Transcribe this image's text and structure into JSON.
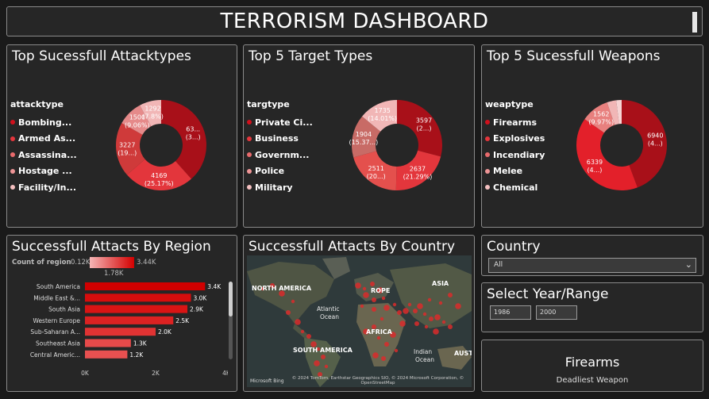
{
  "header": {
    "title": "TERRORISM DASHBOARD"
  },
  "attacktypes": {
    "title": "Top Sucessfull Attacktypes",
    "legend_title": "attacktype",
    "legend": [
      {
        "label": "Bombing...",
        "color": "#d0101c"
      },
      {
        "label": "Armed As...",
        "color": "#e3363c"
      },
      {
        "label": "Assassina...",
        "color": "#e86a6c"
      },
      {
        "label": "Hostage ...",
        "color": "#ee9596"
      },
      {
        "label": "Facility/In...",
        "color": "#f4c0c0"
      }
    ],
    "slices": [
      {
        "value": 6350,
        "l1": "63...",
        "l2": "(3...)",
        "color": "#a81019"
      },
      {
        "value": 4169,
        "l1": "4169",
        "l2": "(25.17%)",
        "color": "#e3363c"
      },
      {
        "value": 3227,
        "l1": "3227",
        "l2": "(19...)",
        "color": "#cf3a3a"
      },
      {
        "value": 1500,
        "l1": "1500",
        "l2": "(9.06%)",
        "color": "#e58a8a"
      },
      {
        "value": 1292,
        "l1": "1292",
        "l2": "(7.8%)",
        "color": "#f1b6b6"
      }
    ]
  },
  "targettypes": {
    "title": "Top 5 Target Types",
    "legend_title": "targtype",
    "legend": [
      {
        "label": "Private Ci...",
        "color": "#d0101c"
      },
      {
        "label": "Business",
        "color": "#e3363c"
      },
      {
        "label": "Governm...",
        "color": "#e86a6c"
      },
      {
        "label": "Police",
        "color": "#ee9596"
      },
      {
        "label": "Military",
        "color": "#f4c0c0"
      }
    ],
    "slices": [
      {
        "value": 3597,
        "l1": "3597",
        "l2": "(2...)",
        "color": "#a81019"
      },
      {
        "value": 2637,
        "l1": "2637",
        "l2": "(21.29%)",
        "color": "#e3363c"
      },
      {
        "value": 2511,
        "l1": "2511",
        "l2": "(20...)",
        "color": "#e4504d"
      },
      {
        "value": 1904,
        "l1": "1904",
        "l2": "(15.37...)",
        "color": "#c86b66"
      },
      {
        "value": 1735,
        "l1": "1735",
        "l2": "(14.01%)",
        "color": "#f1b6b6"
      }
    ]
  },
  "weapons": {
    "title": "Top 5 Sucessfull Weapons",
    "legend_title": "weaptype",
    "legend": [
      {
        "label": "Firearms",
        "color": "#d0101c"
      },
      {
        "label": "Explosives",
        "color": "#e3363c"
      },
      {
        "label": "Incendiary",
        "color": "#e86a6c"
      },
      {
        "label": "Melee",
        "color": "#ee9596"
      },
      {
        "label": "Chemical",
        "color": "#f4c0c0"
      }
    ],
    "slices": [
      {
        "value": 6940,
        "l1": "6940",
        "l2": "(4...)",
        "color": "#a81019"
      },
      {
        "value": 6339,
        "l1": "6339",
        "l2": "(4...)",
        "color": "#e3202a"
      },
      {
        "value": 1562,
        "l1": "1562",
        "l2": "(9.97%)",
        "color": "#e8807e"
      },
      {
        "value": 520,
        "l1": "",
        "l2": "",
        "color": "#f1b6b6"
      },
      {
        "value": 300,
        "l1": "",
        "l2": "",
        "color": "#f7d4d4"
      }
    ]
  },
  "region": {
    "title": "Successfull Attacts By Region",
    "legend_label": "Count of region",
    "legend_min": "0.12K",
    "legend_max": "3.44K",
    "legend_mid": "1.78K"
  },
  "chart_data": {
    "type": "bar",
    "orientation": "horizontal",
    "categories": [
      "South America",
      "Middle East &...",
      "South Asia",
      "Western Europe",
      "Sub-Saharan A...",
      "Southeast Asia",
      "Central Americ..."
    ],
    "values": [
      3400,
      3000,
      2900,
      2500,
      2000,
      1300,
      1200
    ],
    "data_labels": [
      "3.4K",
      "3.0K",
      "2.9K",
      "2.5K",
      "2.0K",
      "1.3K",
      "1.2K"
    ],
    "colors": [
      "#d00000",
      "#d60d0d",
      "#d91414",
      "#dc2222",
      "#e03333",
      "#e74a4a",
      "#e85050"
    ],
    "xticks": [
      "0K",
      "2K",
      "4K"
    ],
    "xlim": [
      0,
      4000
    ]
  },
  "map": {
    "title": "Successfull Attacts By Country",
    "labels": {
      "na": "NORTH AMERICA",
      "eu": "ROPE",
      "asia": "ASIA",
      "af": "AFRICA",
      "sa": "SOUTH AMERICA",
      "au": "AUSTI"
    },
    "oceans": {
      "atl1": "Atlantic",
      "atl2": "Ocean",
      "ind1": "Indian",
      "ind2": "Ocean"
    },
    "copyright": "© 2024 TomTom, Earthstar Geographics SIO, © 2024 Microsoft Corporation, © OpenStreetMap",
    "bing": "Microsoft Bing"
  },
  "country": {
    "title": "Country",
    "selected": "All"
  },
  "year": {
    "title": "Select Year/Range",
    "from": "1986",
    "to": "2000"
  },
  "card": {
    "value": "Firearms",
    "label": "Deadliest  Weapon"
  }
}
